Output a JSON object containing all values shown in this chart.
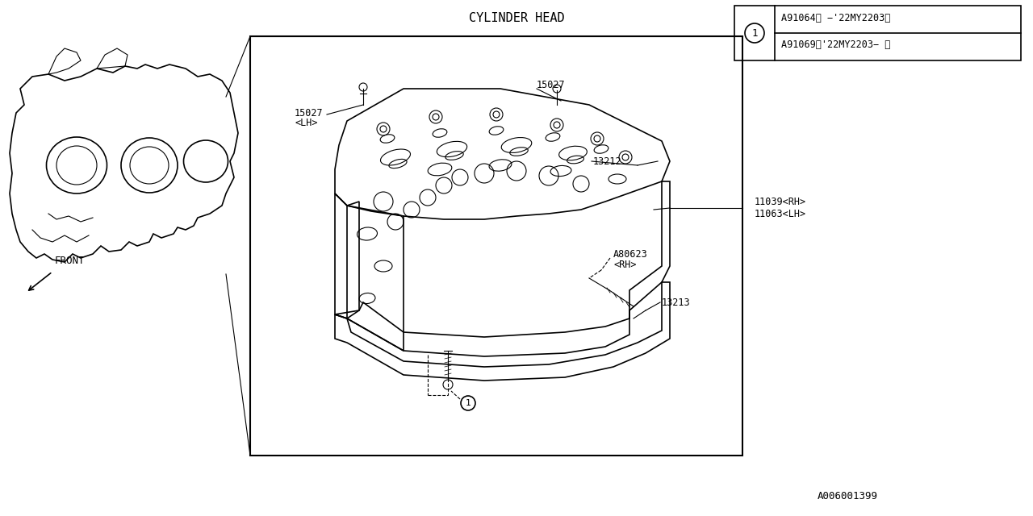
{
  "title": "CYLINDER HEAD",
  "background_color": "#ffffff",
  "line_color": "#000000",
  "part_numbers": {
    "15027_LH": "15027\n<LH>",
    "15027_RH": "15027",
    "13212": "13212",
    "11039_11063": "11039<RH>\n11063<LH>",
    "A80623": "A80623\n<RH>",
    "13213": "13213",
    "A91064": "A91064〈 −’22MY2203〉",
    "A91069": "A91069〈’22MY2203− 〉",
    "footer": "A006001399"
  },
  "legend_circle_label": "1",
  "front_label": "FRONT"
}
